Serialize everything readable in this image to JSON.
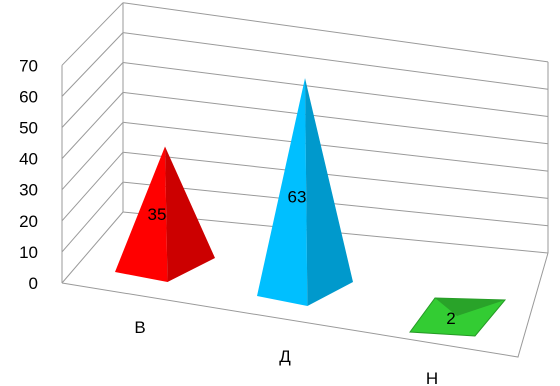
{
  "chart_data": {
    "type": "bar",
    "style": "3d-pyramid",
    "categories": [
      "В",
      "Д",
      "Н"
    ],
    "values": [
      35,
      63,
      2
    ],
    "colors": [
      "#ff0000",
      "#00bfff",
      "#33cc33"
    ],
    "ylim": [
      0,
      70
    ],
    "yticks": [
      "0",
      "10",
      "20",
      "30",
      "40",
      "50",
      "60",
      "70"
    ],
    "grid": true,
    "legend": "none"
  }
}
